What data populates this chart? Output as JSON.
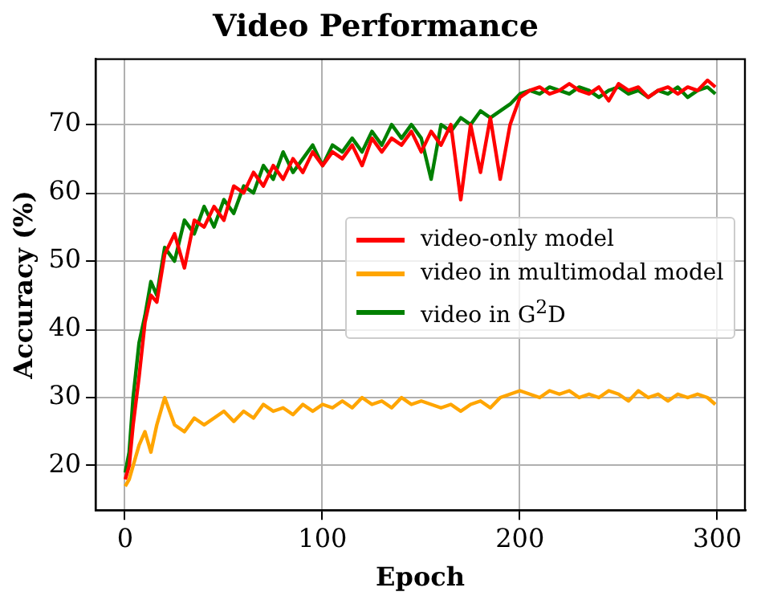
{
  "chart_data": {
    "type": "line",
    "title": "Video Performance",
    "xlabel": "Epoch",
    "ylabel": "Accuracy (%)",
    "x": [
      0,
      2,
      4,
      7,
      10,
      13,
      16,
      20,
      25,
      30,
      35,
      40,
      45,
      50,
      55,
      60,
      65,
      70,
      75,
      80,
      85,
      90,
      95,
      100,
      105,
      110,
      115,
      120,
      125,
      130,
      135,
      140,
      145,
      150,
      155,
      160,
      165,
      170,
      175,
      180,
      185,
      190,
      195,
      200,
      205,
      210,
      215,
      220,
      225,
      230,
      235,
      240,
      245,
      250,
      255,
      260,
      265,
      270,
      275,
      280,
      285,
      290,
      295,
      299
    ],
    "xlim": [
      -15,
      314
    ],
    "xticks": [
      0,
      100,
      200,
      300
    ],
    "ylim": [
      13.5,
      79.6
    ],
    "yticks": [
      20,
      30,
      40,
      50,
      60,
      70
    ],
    "grid": true,
    "legend": "center right",
    "marker": "none",
    "line_style": "solid",
    "series": [
      {
        "name": "video-only model",
        "color": "#ff0000",
        "values": [
          18,
          20,
          26,
          33,
          41,
          45,
          44,
          51,
          54,
          49,
          56,
          55,
          58,
          56,
          61,
          60,
          63,
          61,
          64,
          62,
          65,
          63,
          66,
          64,
          66,
          65,
          67,
          64,
          68,
          66,
          68,
          67,
          69,
          66,
          69,
          67,
          70,
          59,
          70,
          63,
          71,
          62,
          70,
          74,
          75,
          75.5,
          74.5,
          75,
          76,
          75,
          74.5,
          75.5,
          73.5,
          76,
          75,
          75.5,
          74,
          75,
          75.5,
          74.5,
          75.5,
          75,
          76.5,
          75.5
        ]
      },
      {
        "name": "video in multimodal model",
        "color": "#ffa500",
        "values": [
          17,
          18,
          20,
          23,
          25,
          22,
          26,
          30,
          26,
          25,
          27,
          26,
          27,
          28,
          26.5,
          28,
          27,
          29,
          28,
          28.5,
          27.5,
          29,
          28,
          29,
          28.5,
          29.5,
          28.5,
          30,
          29,
          29.5,
          28.5,
          30,
          29,
          29.5,
          29,
          28.5,
          29,
          28,
          29,
          29.5,
          28.5,
          30,
          30.5,
          31,
          30.5,
          30,
          31,
          30.5,
          31,
          30,
          30.5,
          30,
          31,
          30.5,
          29.5,
          31,
          30,
          30.5,
          29.5,
          30.5,
          30,
          30.5,
          30,
          29
        ]
      },
      {
        "name": "video in G$^{2}$D",
        "color": "#008000",
        "values": [
          19,
          22,
          30,
          38,
          42,
          47,
          45,
          52,
          50,
          56,
          54,
          58,
          55,
          59,
          57,
          61,
          60,
          64,
          62,
          66,
          63,
          65,
          67,
          64,
          67,
          66,
          68,
          66,
          69,
          67,
          70,
          68,
          70,
          68,
          62,
          70,
          69,
          71,
          70,
          72,
          71,
          72,
          73,
          74.5,
          75,
          74.5,
          75.5,
          75,
          74.5,
          75.5,
          75,
          74,
          75,
          75.5,
          74.5,
          75,
          74,
          75,
          74.5,
          75.5,
          74,
          75,
          75.5,
          74.5
        ]
      }
    ]
  }
}
